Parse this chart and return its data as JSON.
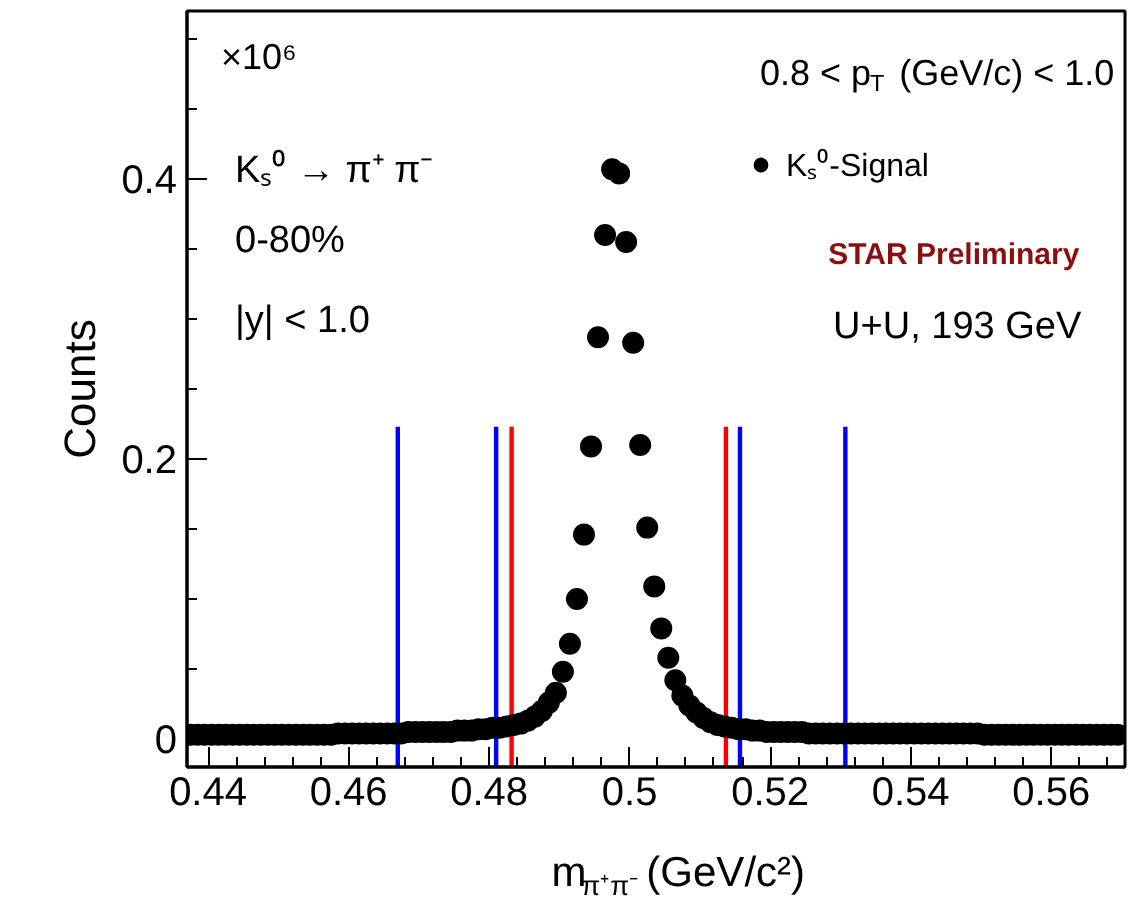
{
  "chart_data": {
    "type": "scatter",
    "xlabel": "m$_{π⁺π⁻}$ (GeV/c²)",
    "ylabel": "Counts",
    "xlim": [
      0.437,
      0.5705
    ],
    "ylim": [
      -0.02,
      0.52
    ],
    "xticks": [
      0.44,
      0.46,
      0.48,
      0.5,
      0.52,
      0.54,
      0.56
    ],
    "yticks": [
      0,
      0.2,
      0.4
    ],
    "marker": "circle",
    "legend": "top right",
    "annotations": [
      "×10⁶",
      "0.8 < p$_{T}$ (GeV/c) < 1.0",
      "Kₛ⁰ → π⁺ π⁻",
      "0-80%",
      "|y| < 1.0",
      "STAR Preliminary",
      "U+U, 193 GeV"
    ],
    "series": [
      {
        "name": "Kₛ⁰-Signal",
        "color": "#000000",
        "x": [
          0.4375,
          0.4385,
          0.4395,
          0.4405,
          0.4415,
          0.4425,
          0.4435,
          0.4445,
          0.4455,
          0.4465,
          0.4475,
          0.4485,
          0.4495,
          0.4505,
          0.4515,
          0.4525,
          0.4535,
          0.4545,
          0.4555,
          0.4565,
          0.4575,
          0.4585,
          0.4595,
          0.4605,
          0.4615,
          0.4625,
          0.4635,
          0.4645,
          0.4655,
          0.4665,
          0.4675,
          0.4685,
          0.4695,
          0.4705,
          0.4715,
          0.4725,
          0.4735,
          0.4745,
          0.4755,
          0.4765,
          0.4775,
          0.4785,
          0.4795,
          0.4805,
          0.4815,
          0.4825,
          0.4835,
          0.4845,
          0.4855,
          0.4865,
          0.4875,
          0.4885,
          0.4895,
          0.4905,
          0.4915,
          0.4925,
          0.4935,
          0.4945,
          0.4955,
          0.4965,
          0.4975,
          0.4985,
          0.4995,
          0.5005,
          0.5015,
          0.5025,
          0.5035,
          0.5045,
          0.5055,
          0.5065,
          0.5075,
          0.5085,
          0.5095,
          0.5105,
          0.5115,
          0.5125,
          0.5135,
          0.5145,
          0.5155,
          0.5165,
          0.5175,
          0.5185,
          0.5195,
          0.5205,
          0.5215,
          0.5225,
          0.5235,
          0.5245,
          0.5255,
          0.5265,
          0.5275,
          0.5285,
          0.5295,
          0.5305,
          0.5315,
          0.5325,
          0.5335,
          0.5345,
          0.5355,
          0.5365,
          0.5375,
          0.5385,
          0.5395,
          0.5405,
          0.5415,
          0.5425,
          0.5435,
          0.5445,
          0.5455,
          0.5465,
          0.5475,
          0.5485,
          0.5495,
          0.5505,
          0.5515,
          0.5525,
          0.5535,
          0.5545,
          0.5555,
          0.5565,
          0.5575,
          0.5585,
          0.5595,
          0.5605,
          0.5615,
          0.5625,
          0.5635,
          0.5645,
          0.5655,
          0.5665,
          0.5675,
          0.5685,
          0.5695
        ],
        "values": [
          0.003,
          0.003,
          0.003,
          0.003,
          0.003,
          0.003,
          0.003,
          0.003,
          0.003,
          0.003,
          0.003,
          0.003,
          0.003,
          0.003,
          0.003,
          0.003,
          0.003,
          0.003,
          0.003,
          0.003,
          0.003,
          0.004,
          0.004,
          0.004,
          0.004,
          0.004,
          0.004,
          0.004,
          0.004,
          0.004,
          0.004,
          0.005,
          0.005,
          0.005,
          0.005,
          0.005,
          0.005,
          0.005,
          0.006,
          0.006,
          0.006,
          0.007,
          0.007,
          0.008,
          0.008,
          0.009,
          0.01,
          0.011,
          0.013,
          0.016,
          0.02,
          0.026,
          0.033,
          0.048,
          0.068,
          0.1,
          0.146,
          0.209,
          0.287,
          0.36,
          0.407,
          0.404,
          0.355,
          0.283,
          0.21,
          0.151,
          0.109,
          0.079,
          0.058,
          0.042,
          0.031,
          0.024,
          0.019,
          0.015,
          0.012,
          0.01,
          0.009,
          0.008,
          0.007,
          0.007,
          0.006,
          0.006,
          0.005,
          0.005,
          0.005,
          0.005,
          0.005,
          0.005,
          0.004,
          0.004,
          0.004,
          0.004,
          0.004,
          0.004,
          0.004,
          0.004,
          0.004,
          0.004,
          0.004,
          0.004,
          0.004,
          0.004,
          0.004,
          0.004,
          0.004,
          0.004,
          0.004,
          0.004,
          0.004,
          0.004,
          0.004,
          0.004,
          0.004,
          0.003,
          0.003,
          0.003,
          0.003,
          0.003,
          0.003,
          0.003,
          0.003,
          0.003,
          0.003,
          0.003,
          0.003,
          0.003,
          0.003,
          0.003,
          0.003,
          0.003,
          0.003,
          0.003,
          0.003
        ]
      },
      {
        "type": "line",
        "marker": "none",
        "color": "#0000ff",
        "x": [
          0.467,
          0.467
        ],
        "values": [
          -0.02,
          0.223
        ]
      },
      {
        "type": "line",
        "marker": "none",
        "color": "#0000ff",
        "x": [
          0.481,
          0.481
        ],
        "values": [
          -0.02,
          0.223
        ]
      },
      {
        "type": "line",
        "marker": "none",
        "color": "#ff0000",
        "x": [
          0.4832,
          0.4832
        ],
        "values": [
          -0.02,
          0.223
        ]
      },
      {
        "type": "line",
        "marker": "none",
        "color": "#ff0000",
        "x": [
          0.5137,
          0.5137
        ],
        "values": [
          -0.02,
          0.223
        ]
      },
      {
        "type": "line",
        "marker": "none",
        "color": "#0000ff",
        "x": [
          0.5157,
          0.5157
        ],
        "values": [
          -0.02,
          0.223
        ]
      },
      {
        "type": "line",
        "marker": "none",
        "color": "#0000ff",
        "x": [
          0.5307,
          0.5307
        ],
        "values": [
          -0.02,
          0.223
        ]
      }
    ]
  }
}
